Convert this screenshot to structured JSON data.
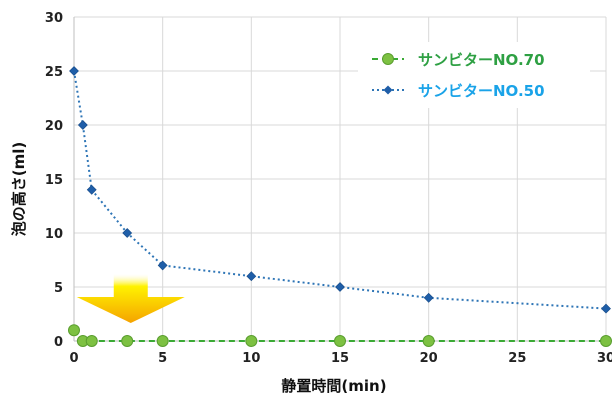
{
  "chart_data": {
    "type": "line",
    "xlabel": "静置時間(min)",
    "ylabel": "泡の高さ(ml)",
    "xlim": [
      0,
      30
    ],
    "ylim": [
      0,
      30
    ],
    "xticks": [
      0,
      5,
      10,
      15,
      20,
      25,
      30
    ],
    "yticks": [
      0,
      5,
      10,
      15,
      20,
      25,
      30
    ],
    "grid": true,
    "legend_position": "top-right",
    "series": [
      {
        "name": "サンビターNO.70",
        "color": "#7dc142",
        "text_color": "#2ea043",
        "line_color": "#3aaa35",
        "marker": "circle",
        "line_style": "dashed",
        "points": [
          [
            0,
            1
          ],
          [
            0.5,
            0
          ],
          [
            1,
            0
          ],
          [
            3,
            0
          ],
          [
            5,
            0
          ],
          [
            10,
            0
          ],
          [
            15,
            0
          ],
          [
            20,
            0
          ],
          [
            30,
            0
          ]
        ]
      },
      {
        "name": "サンビターNO.50",
        "color": "#1f5ea8",
        "text_color": "#1aa3e8",
        "line_color": "#2e75b6",
        "marker": "diamond",
        "line_style": "dotted",
        "points": [
          [
            0,
            25
          ],
          [
            0.5,
            20
          ],
          [
            1,
            14
          ],
          [
            3,
            10
          ],
          [
            5,
            7
          ],
          [
            10,
            6
          ],
          [
            15,
            5
          ],
          [
            20,
            4
          ],
          [
            30,
            3
          ]
        ]
      }
    ],
    "annotation": {
      "type": "down-arrow",
      "color_top": "#fff200",
      "color_bottom": "#f5a300"
    }
  }
}
